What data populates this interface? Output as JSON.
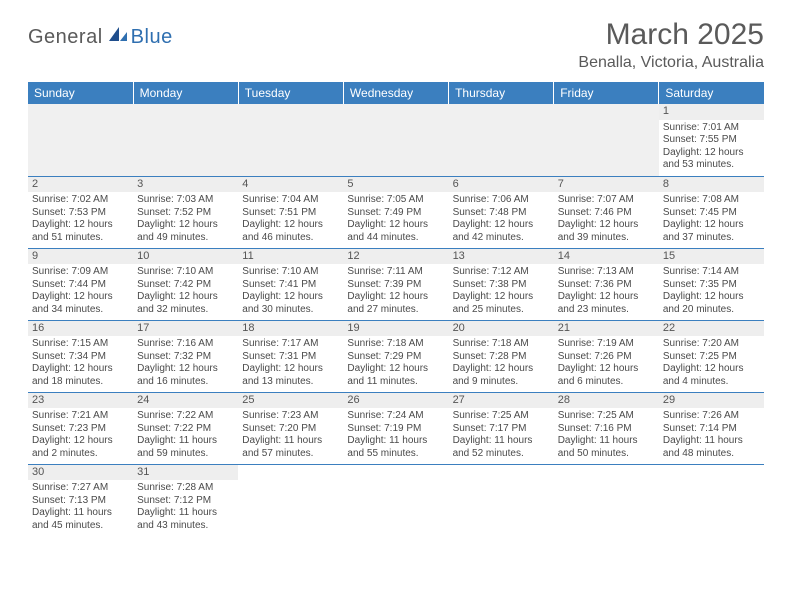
{
  "logo": {
    "part1": "General",
    "part2": "Blue"
  },
  "title": "March 2025",
  "location": "Benalla, Victoria, Australia",
  "colors": {
    "header_bg": "#3b7fbf",
    "header_fg": "#ffffff",
    "daynum_bg": "#eeeeee",
    "border": "#3b7fbf",
    "text": "#4a4a4a",
    "logo_gray": "#5a5a5a",
    "logo_blue": "#2f6fb0"
  },
  "typography": {
    "title_fontsize": 30,
    "location_fontsize": 16,
    "header_fontsize": 12,
    "cell_fontsize": 10,
    "daynum_fontsize": 11
  },
  "weekdays": [
    "Sunday",
    "Monday",
    "Tuesday",
    "Wednesday",
    "Thursday",
    "Friday",
    "Saturday"
  ],
  "weeks": [
    [
      null,
      null,
      null,
      null,
      null,
      null,
      {
        "n": "1",
        "sr": "7:01 AM",
        "ss": "7:55 PM",
        "dl": "12 hours and 53 minutes."
      }
    ],
    [
      {
        "n": "2",
        "sr": "7:02 AM",
        "ss": "7:53 PM",
        "dl": "12 hours and 51 minutes."
      },
      {
        "n": "3",
        "sr": "7:03 AM",
        "ss": "7:52 PM",
        "dl": "12 hours and 49 minutes."
      },
      {
        "n": "4",
        "sr": "7:04 AM",
        "ss": "7:51 PM",
        "dl": "12 hours and 46 minutes."
      },
      {
        "n": "5",
        "sr": "7:05 AM",
        "ss": "7:49 PM",
        "dl": "12 hours and 44 minutes."
      },
      {
        "n": "6",
        "sr": "7:06 AM",
        "ss": "7:48 PM",
        "dl": "12 hours and 42 minutes."
      },
      {
        "n": "7",
        "sr": "7:07 AM",
        "ss": "7:46 PM",
        "dl": "12 hours and 39 minutes."
      },
      {
        "n": "8",
        "sr": "7:08 AM",
        "ss": "7:45 PM",
        "dl": "12 hours and 37 minutes."
      }
    ],
    [
      {
        "n": "9",
        "sr": "7:09 AM",
        "ss": "7:44 PM",
        "dl": "12 hours and 34 minutes."
      },
      {
        "n": "10",
        "sr": "7:10 AM",
        "ss": "7:42 PM",
        "dl": "12 hours and 32 minutes."
      },
      {
        "n": "11",
        "sr": "7:10 AM",
        "ss": "7:41 PM",
        "dl": "12 hours and 30 minutes."
      },
      {
        "n": "12",
        "sr": "7:11 AM",
        "ss": "7:39 PM",
        "dl": "12 hours and 27 minutes."
      },
      {
        "n": "13",
        "sr": "7:12 AM",
        "ss": "7:38 PM",
        "dl": "12 hours and 25 minutes."
      },
      {
        "n": "14",
        "sr": "7:13 AM",
        "ss": "7:36 PM",
        "dl": "12 hours and 23 minutes."
      },
      {
        "n": "15",
        "sr": "7:14 AM",
        "ss": "7:35 PM",
        "dl": "12 hours and 20 minutes."
      }
    ],
    [
      {
        "n": "16",
        "sr": "7:15 AM",
        "ss": "7:34 PM",
        "dl": "12 hours and 18 minutes."
      },
      {
        "n": "17",
        "sr": "7:16 AM",
        "ss": "7:32 PM",
        "dl": "12 hours and 16 minutes."
      },
      {
        "n": "18",
        "sr": "7:17 AM",
        "ss": "7:31 PM",
        "dl": "12 hours and 13 minutes."
      },
      {
        "n": "19",
        "sr": "7:18 AM",
        "ss": "7:29 PM",
        "dl": "12 hours and 11 minutes."
      },
      {
        "n": "20",
        "sr": "7:18 AM",
        "ss": "7:28 PM",
        "dl": "12 hours and 9 minutes."
      },
      {
        "n": "21",
        "sr": "7:19 AM",
        "ss": "7:26 PM",
        "dl": "12 hours and 6 minutes."
      },
      {
        "n": "22",
        "sr": "7:20 AM",
        "ss": "7:25 PM",
        "dl": "12 hours and 4 minutes."
      }
    ],
    [
      {
        "n": "23",
        "sr": "7:21 AM",
        "ss": "7:23 PM",
        "dl": "12 hours and 2 minutes."
      },
      {
        "n": "24",
        "sr": "7:22 AM",
        "ss": "7:22 PM",
        "dl": "11 hours and 59 minutes."
      },
      {
        "n": "25",
        "sr": "7:23 AM",
        "ss": "7:20 PM",
        "dl": "11 hours and 57 minutes."
      },
      {
        "n": "26",
        "sr": "7:24 AM",
        "ss": "7:19 PM",
        "dl": "11 hours and 55 minutes."
      },
      {
        "n": "27",
        "sr": "7:25 AM",
        "ss": "7:17 PM",
        "dl": "11 hours and 52 minutes."
      },
      {
        "n": "28",
        "sr": "7:25 AM",
        "ss": "7:16 PM",
        "dl": "11 hours and 50 minutes."
      },
      {
        "n": "29",
        "sr": "7:26 AM",
        "ss": "7:14 PM",
        "dl": "11 hours and 48 minutes."
      }
    ],
    [
      {
        "n": "30",
        "sr": "7:27 AM",
        "ss": "7:13 PM",
        "dl": "11 hours and 45 minutes."
      },
      {
        "n": "31",
        "sr": "7:28 AM",
        "ss": "7:12 PM",
        "dl": "11 hours and 43 minutes."
      },
      null,
      null,
      null,
      null,
      null
    ]
  ],
  "labels": {
    "sunrise": "Sunrise:",
    "sunset": "Sunset:",
    "daylight": "Daylight:"
  }
}
